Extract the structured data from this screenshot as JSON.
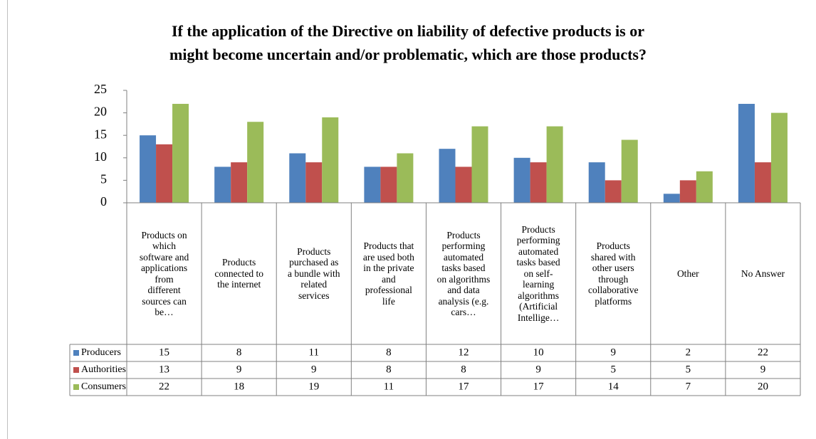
{
  "chart_data": {
    "type": "bar",
    "title": "If the application of the Directive on liability of defective products is or might become uncertain and/or problematic, which are those products?",
    "categories": [
      "Products on which software and applications from different sources can be…",
      "Products connected to the internet",
      "Products purchased as a bundle with related services",
      "Products that are used both in the private and professional life",
      "Products performing automated tasks based on algorithms and data analysis (e.g. cars…",
      "Products performing automated tasks based on self-learning algorithms (Artificial Intellige…",
      "Products shared with other users through collaborative platforms",
      "Other",
      "No Answer"
    ],
    "series": [
      {
        "name": "Producers",
        "color": "#4f81bd",
        "values": [
          15,
          8,
          11,
          8,
          12,
          10,
          9,
          2,
          22
        ]
      },
      {
        "name": "Authorities",
        "color": "#c0504d",
        "values": [
          13,
          9,
          9,
          8,
          8,
          9,
          5,
          5,
          9
        ]
      },
      {
        "name": "Consumers",
        "color": "#9bbb59",
        "values": [
          22,
          18,
          19,
          11,
          17,
          17,
          14,
          7,
          20
        ]
      }
    ],
    "ylim": [
      0,
      25
    ],
    "yticks": [
      0,
      5,
      10,
      15,
      20,
      25
    ],
    "grid": false,
    "data_table": true
  }
}
